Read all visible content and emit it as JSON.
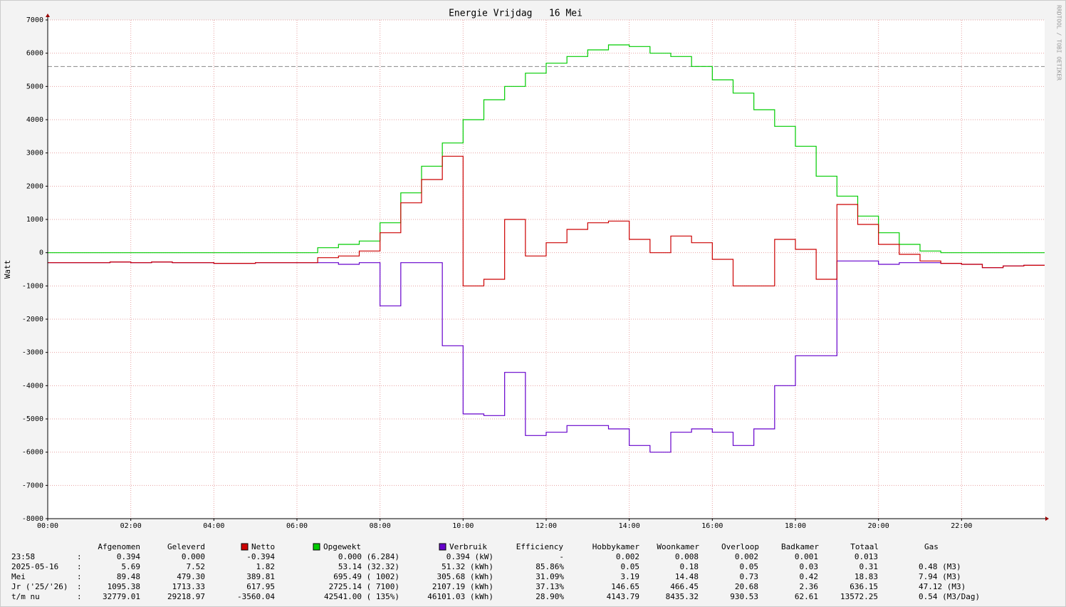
{
  "chart_data": {
    "type": "line",
    "title": "Energie Vrijdag   16 Mei",
    "y_label": "Watt",
    "watermark": "RRDTOOL / TOBI OETIKER",
    "x": [
      0,
      0.5,
      1,
      1.5,
      2,
      2.5,
      3,
      3.5,
      4,
      4.5,
      5,
      5.5,
      6,
      6.5,
      7,
      7.5,
      8,
      8.5,
      9,
      9.5,
      10,
      10.5,
      11,
      11.5,
      12,
      12.5,
      13,
      13.5,
      14,
      14.5,
      15,
      15.5,
      16,
      16.5,
      17,
      17.5,
      18,
      18.5,
      19,
      19.5,
      20,
      20.5,
      21,
      21.5,
      22,
      22.5,
      23,
      23.5,
      24
    ],
    "series": [
      {
        "name": "Netto",
        "color": "#cc0000",
        "values": [
          -300,
          -300,
          -300,
          -280,
          -300,
          -280,
          -300,
          -300,
          -320,
          -320,
          -300,
          -300,
          -300,
          -150,
          -100,
          50,
          600,
          1500,
          2200,
          2900,
          -1000,
          -800,
          1000,
          -100,
          300,
          700,
          900,
          950,
          400,
          0,
          500,
          300,
          -200,
          -1000,
          -1000,
          400,
          100,
          -800,
          1450,
          850,
          250,
          -50,
          -250,
          -320,
          -350,
          -450,
          -400,
          -380,
          -380
        ]
      },
      {
        "name": "Opgewekt",
        "color": "#00cc00",
        "values": [
          0,
          0,
          0,
          0,
          0,
          0,
          0,
          0,
          0,
          0,
          0,
          0,
          0,
          150,
          250,
          350,
          900,
          1800,
          2600,
          3300,
          4000,
          4600,
          5000,
          5400,
          5700,
          5900,
          6100,
          6250,
          6200,
          6000,
          5900,
          5600,
          5200,
          4800,
          4300,
          3800,
          3200,
          2300,
          1700,
          1100,
          600,
          250,
          50,
          0,
          0,
          0,
          0,
          0,
          0
        ]
      },
      {
        "name": "Verbruik",
        "color": "#6600cc",
        "values": [
          -300,
          -300,
          -300,
          -280,
          -300,
          -280,
          -300,
          -300,
          -320,
          -320,
          -300,
          -300,
          -300,
          -300,
          -350,
          -300,
          -1600,
          -300,
          -300,
          -2800,
          -4850,
          -4900,
          -3600,
          -5500,
          -5400,
          -5200,
          -5200,
          -5300,
          -5800,
          -6000,
          -5400,
          -5300,
          -5400,
          -5800,
          -5300,
          -4000,
          -3100,
          -3100,
          -250,
          -250,
          -350,
          -300,
          -300,
          -320,
          -350,
          -450,
          -400,
          -380,
          -380
        ]
      }
    ],
    "hrule": 5600,
    "xlim": [
      0,
      24
    ],
    "xticks": [
      {
        "value": 0,
        "label": "00:00"
      },
      {
        "value": 2,
        "label": "02:00"
      },
      {
        "value": 4,
        "label": "04:00"
      },
      {
        "value": 6,
        "label": "06:00"
      },
      {
        "value": 8,
        "label": "08:00"
      },
      {
        "value": 10,
        "label": "10:00"
      },
      {
        "value": 12,
        "label": "12:00"
      },
      {
        "value": 14,
        "label": "14:00"
      },
      {
        "value": 16,
        "label": "16:00"
      },
      {
        "value": 18,
        "label": "18:00"
      },
      {
        "value": 20,
        "label": "20:00"
      },
      {
        "value": 22,
        "label": "22:00"
      }
    ],
    "ylim": [
      -8000,
      7000
    ],
    "yticks": [
      -8000,
      -7000,
      -6000,
      -5000,
      -4000,
      -3000,
      -2000,
      -1000,
      0,
      1000,
      2000,
      3000,
      4000,
      5000,
      6000,
      7000
    ],
    "grid": true
  },
  "table": {
    "headers": [
      "Afgenomen",
      "Geleverd",
      "Efficiency",
      "Hobbykamer",
      "Woonkamer",
      "Overloop",
      "Badkamer",
      "Totaal",
      "Gas"
    ],
    "separator": ":",
    "rows": [
      {
        "label": "23:58",
        "cells": [
          "0.394",
          "0.000",
          "-0.394",
          "0.000 (6.284)",
          "0.394 (kW)",
          "-",
          "0.002",
          "0.008",
          "0.002",
          "0.001",
          "0.013"
        ]
      },
      {
        "label": "2025-05-16",
        "cells": [
          "5.69",
          "7.52",
          "1.82",
          "53.14 (32.32)",
          "51.32 (kWh)",
          "85.86%",
          "0.05",
          "0.18",
          "0.05",
          "0.03",
          "0.31",
          "0.48 (M3)"
        ]
      },
      {
        "label": "Mei",
        "cells": [
          "89.48",
          "479.30",
          "389.81",
          "695.49 ( 1002)",
          "305.68 (kWh)",
          "31.09%",
          "3.19",
          "14.48",
          "0.73",
          "0.42",
          "18.83",
          "7.94 (M3)"
        ]
      },
      {
        "label": "Jr ('25/'26)",
        "cells": [
          "1095.38",
          "1713.33",
          "617.95",
          "2725.14 ( 7100)",
          "2107.19 (kWh)",
          "37.13%",
          "146.65",
          "466.45",
          "20.68",
          "2.36",
          "636.15",
          "47.12 (M3)"
        ]
      },
      {
        "label": "t/m nu",
        "cells": [
          "32779.01",
          "29218.97",
          "-3560.04",
          "42541.00 ( 135%)",
          "46101.03 (kWh)",
          "28.90%",
          "4143.79",
          "8435.32",
          "930.53",
          "62.61",
          "13572.25",
          "0.54 (M3/Dag)"
        ]
      }
    ]
  }
}
